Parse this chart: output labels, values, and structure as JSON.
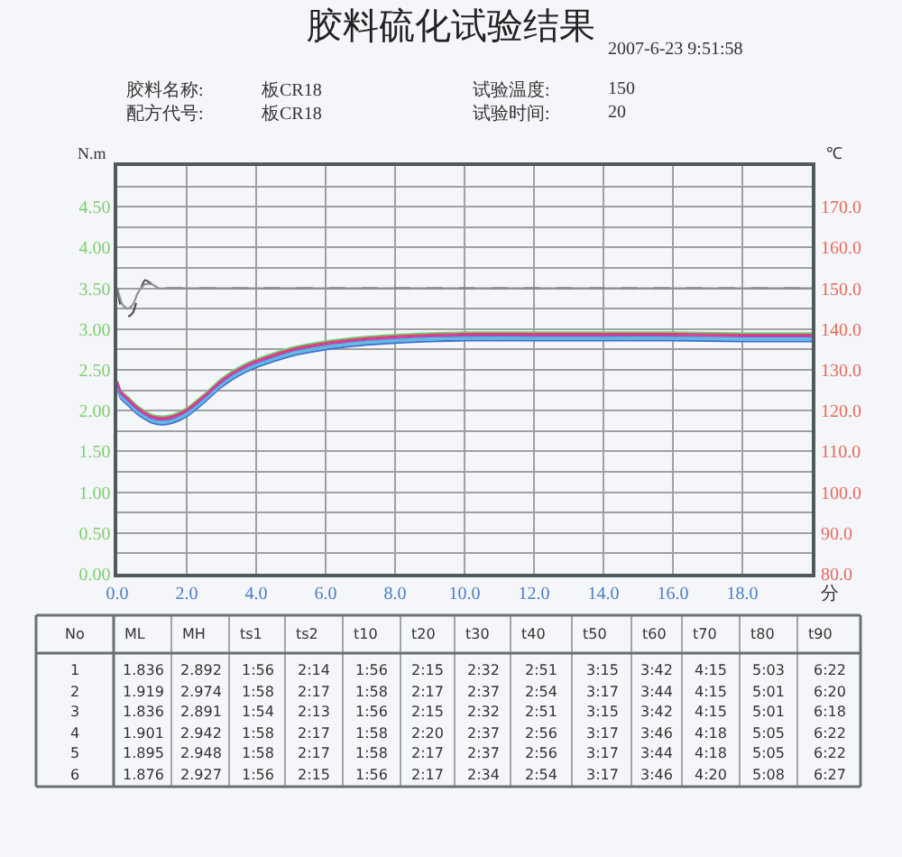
{
  "chart_data": {
    "type": "line",
    "title": "胶料硫化试验结果",
    "annotations": [
      "2007-6-23 9:51:58",
      "胶料名称:",
      "板CR18",
      "试验温度:",
      "150",
      "配方代号:",
      "板CR18",
      "试验时间:",
      "20",
      "No",
      "ML",
      "MH",
      "ts1",
      "ts2",
      "t10",
      "t20",
      "t30",
      "t40",
      "t50",
      "t60",
      "t70",
      "t80",
      "t90",
      "1",
      "1.836",
      "2.892",
      "1:56",
      "2:14",
      "1:56",
      "2:15",
      "2:32",
      "2:51",
      "3:15",
      "3:42",
      "4:15",
      "5:03",
      "6:22",
      "2",
      "1.919",
      "2.974",
      "1:58",
      "2:17",
      "1:58",
      "2:17",
      "2:37",
      "2:54",
      "3:17",
      "3:44",
      "4:15",
      "5:01",
      "6:20",
      "3",
      "1.836",
      "2.891",
      "1:54",
      "2:13",
      "1:56",
      "2:15",
      "2:32",
      "2:51",
      "3:15",
      "3:42",
      "4:15",
      "5:01",
      "6:18",
      "4",
      "1.901",
      "2.942",
      "1:58",
      "2:17",
      "1:58",
      "2:20",
      "2:37",
      "2:56",
      "3:17",
      "3:46",
      "4:18",
      "5:05",
      "6:22",
      "5",
      "1.895",
      "2.948",
      "1:58",
      "2:17",
      "1:58",
      "2:17",
      "2:37",
      "2:56",
      "3:17",
      "3:44",
      "4:18",
      "5:05",
      "6:22",
      "6",
      "1.876",
      "2.927",
      "1:56",
      "2:15",
      "1:56",
      "2:17",
      "2:34",
      "2:54",
      "3:17",
      "3:46",
      "4:20",
      "5:08",
      "6:27"
    ],
    "xlabel": "分",
    "ylabel": "N.m",
    "y2label": "℃",
    "xlim": [
      0,
      20
    ],
    "xticks": [
      {
        "value": 0,
        "label": "0.0"
      },
      {
        "value": 2,
        "label": "2.0"
      },
      {
        "value": 4,
        "label": "4.0"
      },
      {
        "value": 6,
        "label": "6.0"
      },
      {
        "value": 8,
        "label": "8.0"
      },
      {
        "value": 10,
        "label": "10.0"
      },
      {
        "value": 12,
        "label": "12.0"
      },
      {
        "value": 14,
        "label": "14.0"
      },
      {
        "value": 16,
        "label": "16.0"
      },
      {
        "value": 18,
        "label": "18.0"
      },
      {
        "value": 20,
        "label": null
      }
    ],
    "ylim": [
      0,
      5
    ],
    "yticks": [
      {
        "value": 0,
        "label": "0.00"
      },
      {
        "value": 0.25,
        "label": null
      },
      {
        "value": 0.5,
        "label": "0.50"
      },
      {
        "value": 0.75,
        "label": null
      },
      {
        "value": 1,
        "label": "1.00"
      },
      {
        "value": 1.25,
        "label": null
      },
      {
        "value": 1.5,
        "label": "1.50"
      },
      {
        "value": 1.75,
        "label": null
      },
      {
        "value": 2,
        "label": "2.00"
      },
      {
        "value": 2.25,
        "label": null
      },
      {
        "value": 2.5,
        "label": "2.50"
      },
      {
        "value": 2.75,
        "label": null
      },
      {
        "value": 3,
        "label": "3.00"
      },
      {
        "value": 3.25,
        "label": null
      },
      {
        "value": 3.5,
        "label": "3.50"
      },
      {
        "value": 3.75,
        "label": null
      },
      {
        "value": 4,
        "label": "4.00"
      },
      {
        "value": 4.25,
        "label": null
      },
      {
        "value": 4.5,
        "label": "4.50"
      },
      {
        "value": 4.75,
        "label": null
      }
    ],
    "y2lim": [
      80,
      180
    ],
    "y2ticks": [
      {
        "value": 80,
        "label": "80.0"
      },
      {
        "value": 90,
        "label": "90.0"
      },
      {
        "value": 100,
        "label": "100.0"
      },
      {
        "value": 110,
        "label": "110.0"
      },
      {
        "value": 120,
        "label": "120.0"
      },
      {
        "value": 130,
        "label": "130.0"
      },
      {
        "value": 140,
        "label": "140.0"
      },
      {
        "value": 150,
        "label": "150.0"
      },
      {
        "value": 160,
        "label": "160.0"
      },
      {
        "value": 170,
        "label": "170.0"
      }
    ],
    "grid": true,
    "x": [
      0,
      0.1,
      0.3,
      0.6,
      1.0,
      1.3,
      1.6,
      2.0,
      2.5,
      3.0,
      3.5,
      4.0,
      5.0,
      6.0,
      7.0,
      8.0,
      9.0,
      10,
      12,
      14,
      16,
      18,
      20
    ],
    "series": [
      {
        "color": "#3f6fd0",
        "values": [
          2.27,
          2.15,
          2.07,
          1.95,
          1.85,
          1.83,
          1.85,
          1.93,
          2.1,
          2.29,
          2.43,
          2.53,
          2.67,
          2.75,
          2.8,
          2.83,
          2.85,
          2.86,
          2.86,
          2.86,
          2.86,
          2.85,
          2.85
        ]
      },
      {
        "color": "#6fb0e8",
        "values": [
          2.29,
          2.17,
          2.09,
          1.97,
          1.87,
          1.85,
          1.87,
          1.95,
          2.12,
          2.31,
          2.45,
          2.55,
          2.69,
          2.77,
          2.82,
          2.85,
          2.87,
          2.88,
          2.88,
          2.88,
          2.88,
          2.87,
          2.87
        ]
      },
      {
        "color": "#40c8d8",
        "values": [
          2.31,
          2.19,
          2.11,
          1.99,
          1.89,
          1.87,
          1.89,
          1.97,
          2.14,
          2.33,
          2.47,
          2.57,
          2.71,
          2.79,
          2.84,
          2.87,
          2.89,
          2.9,
          2.9,
          2.9,
          2.9,
          2.89,
          2.89
        ]
      },
      {
        "color": "#70d080",
        "values": [
          2.37,
          2.25,
          2.17,
          2.05,
          1.95,
          1.93,
          1.95,
          2.03,
          2.2,
          2.39,
          2.53,
          2.63,
          2.77,
          2.85,
          2.9,
          2.93,
          2.95,
          2.96,
          2.96,
          2.96,
          2.96,
          2.95,
          2.95
        ]
      },
      {
        "color": "#e04060",
        "values": [
          2.35,
          2.23,
          2.15,
          2.03,
          1.93,
          1.91,
          1.93,
          2.01,
          2.18,
          2.37,
          2.51,
          2.61,
          2.75,
          2.83,
          2.88,
          2.91,
          2.93,
          2.94,
          2.94,
          2.94,
          2.94,
          2.93,
          2.93
        ]
      },
      {
        "color": "#c040c0",
        "values": [
          2.33,
          2.21,
          2.13,
          2.01,
          1.91,
          1.89,
          1.91,
          1.99,
          2.16,
          2.35,
          2.49,
          2.59,
          2.73,
          2.81,
          2.86,
          2.89,
          2.91,
          2.92,
          2.92,
          2.92,
          2.92,
          2.91,
          2.91
        ]
      },
      {
        "color": "#505050",
        "axis": "y2",
        "line_style": "dashed",
        "x": [
          0,
          0.15,
          0.3,
          0.45,
          0.6,
          0.8,
          1.0,
          1.2,
          1.5,
          20
        ],
        "values": [
          150,
          144,
          143,
          144,
          148,
          152,
          151,
          150,
          150,
          150
        ]
      },
      {
        "color": "#909090",
        "axis": "y2",
        "x": [
          0,
          0.15,
          0.3,
          0.45,
          0.6,
          0.8,
          1.0,
          1.2,
          1.5,
          20
        ],
        "values": [
          150,
          146,
          145,
          146,
          149,
          151,
          151,
          150,
          150,
          150
        ]
      }
    ]
  }
}
